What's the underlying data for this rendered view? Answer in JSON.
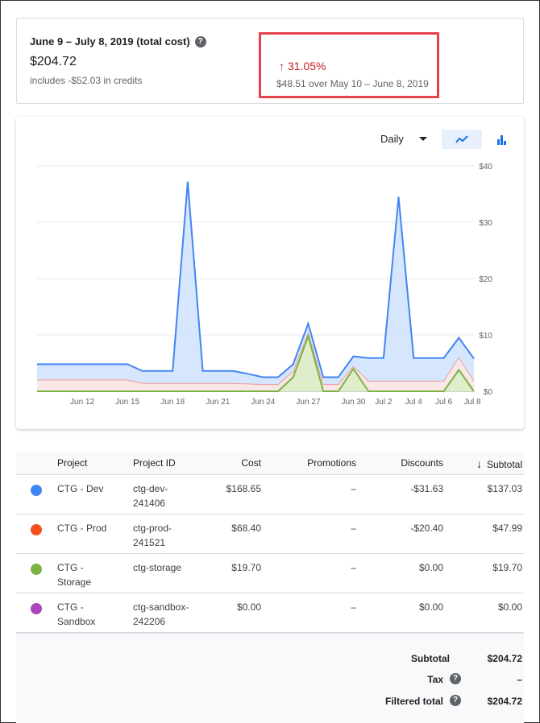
{
  "summary": {
    "title": "June 9 – July 8, 2019 (total cost)",
    "total": "$204.72",
    "credits": "includes -$52.03 in credits",
    "change_pct": "31.05%",
    "change_desc": "$48.51 over May 10 – June 8, 2019",
    "help_icon": "?"
  },
  "chart_controls": {
    "period": "Daily",
    "line_button": "line-chart-icon",
    "bar_button": "bar-chart-icon"
  },
  "chart_data": {
    "type": "area",
    "x_tick_labels": [
      "Jun 12",
      "Jun 15",
      "Jun 18",
      "Jun 21",
      "Jun 24",
      "Jun 27",
      "Jun 30",
      "Jul 2",
      "Jul 4",
      "Jul 6",
      "Jul 8"
    ],
    "y_tick_labels": [
      "$0",
      "$10",
      "$20",
      "$30",
      "$40"
    ],
    "ylim": [
      0,
      40
    ],
    "grid": true,
    "series": [
      {
        "color": "#4285f4",
        "values": [
          4.8,
          4.8,
          4.8,
          4.8,
          4.8,
          4.8,
          4.8,
          3.6,
          3.6,
          3.6,
          37.2,
          3.6,
          3.6,
          3.6,
          3.1,
          2.5,
          2.5,
          4.8,
          12.0,
          2.5,
          2.5,
          6.2,
          5.9,
          5.9,
          34.5,
          5.9,
          5.9,
          5.9,
          9.5,
          5.8
        ]
      },
      {
        "color": "#ea4335",
        "values": [
          2.0,
          2.0,
          2.0,
          2.0,
          2.0,
          2.0,
          2.0,
          1.4,
          1.4,
          1.4,
          1.4,
          1.4,
          1.4,
          1.4,
          1.3,
          1.2,
          1.2,
          3.5,
          10.3,
          1.2,
          1.2,
          4.4,
          1.8,
          1.8,
          1.8,
          1.8,
          1.8,
          1.8,
          6.0,
          1.8
        ]
      },
      {
        "color": "#7cb342",
        "values": [
          0,
          0,
          0,
          0,
          0,
          0,
          0,
          0,
          0,
          0,
          0,
          0,
          0,
          0,
          0,
          0,
          0,
          2.5,
          9.8,
          0,
          0,
          4.0,
          0,
          0,
          0,
          0,
          0,
          0,
          3.8,
          0
        ]
      }
    ]
  },
  "table": {
    "headers": {
      "project": "Project",
      "project_id": "Project ID",
      "cost": "Cost",
      "promotions": "Promotions",
      "discounts": "Discounts",
      "subtotal": "Subtotal"
    },
    "rows": [
      {
        "color": "#4285f4",
        "name": "CTG - Dev",
        "id": "ctg-dev-\n241406",
        "cost": "$168.65",
        "promotions": "–",
        "discounts": "-$31.63",
        "subtotal": "$137.03"
      },
      {
        "color": "#f4511e",
        "name": "CTG - Prod",
        "id": "ctg-prod-\n241521",
        "cost": "$68.40",
        "promotions": "–",
        "discounts": "-$20.40",
        "subtotal": "$47.99"
      },
      {
        "color": "#7cb342",
        "name": "CTG -\nStorage",
        "id": "ctg-storage",
        "cost": "$19.70",
        "promotions": "–",
        "discounts": "$0.00",
        "subtotal": "$19.70"
      },
      {
        "color": "#ab47bc",
        "name": "CTG -\nSandbox",
        "id": "ctg-sandbox-\n242206",
        "cost": "$0.00",
        "promotions": "–",
        "discounts": "$0.00",
        "subtotal": "$0.00"
      }
    ]
  },
  "totals": {
    "subtotal_label": "Subtotal",
    "subtotal": "$204.72",
    "tax_label": "Tax",
    "tax": "–",
    "filtered_label": "Filtered total",
    "filtered": "$204.72"
  }
}
